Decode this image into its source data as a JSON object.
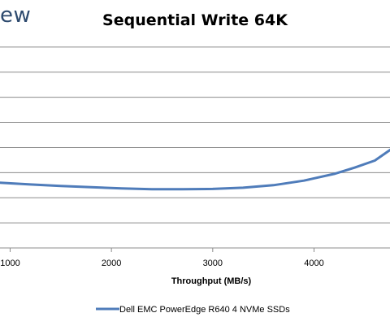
{
  "header": {
    "logo_text": "ew"
  },
  "chart_data": {
    "type": "line",
    "title": "Sequential Write 64K",
    "xlabel": "Throughput (MB/s)",
    "ylabel": "",
    "x_ticks": [
      1000,
      2000,
      3000,
      4000
    ],
    "xlim": [
      900,
      4750
    ],
    "ylim": [
      0,
      9
    ],
    "y_gridlines": [
      1,
      2,
      3,
      4,
      5,
      6,
      7,
      8
    ],
    "grid": true,
    "legend_position": "bottom",
    "series": [
      {
        "name": "Dell EMC PowerEdge R640 4 NVMe SSDs",
        "color": "#4f7cba",
        "points": [
          [
            900,
            2.6
          ],
          [
            1200,
            2.53
          ],
          [
            1500,
            2.47
          ],
          [
            1800,
            2.42
          ],
          [
            2100,
            2.37
          ],
          [
            2400,
            2.34
          ],
          [
            2700,
            2.34
          ],
          [
            3000,
            2.35
          ],
          [
            3300,
            2.4
          ],
          [
            3600,
            2.5
          ],
          [
            3900,
            2.68
          ],
          [
            4200,
            2.95
          ],
          [
            4400,
            3.2
          ],
          [
            4600,
            3.48
          ],
          [
            4750,
            3.9
          ]
        ]
      }
    ]
  }
}
